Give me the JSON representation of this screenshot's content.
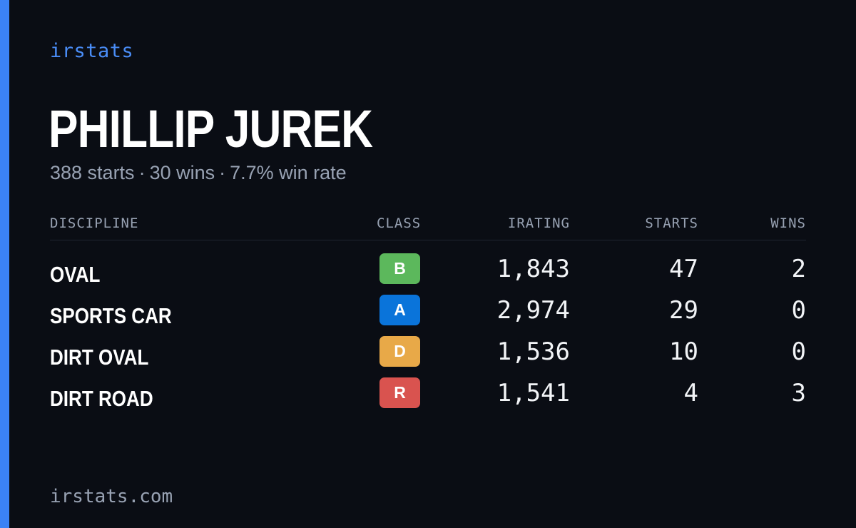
{
  "brand": "irstats",
  "driver": {
    "name": "PHILLIP JUREK",
    "starts_text": "388 starts",
    "wins_text": "30 wins",
    "win_rate_text": "7.7% win rate",
    "separator": "·"
  },
  "table": {
    "headers": {
      "discipline": "DISCIPLINE",
      "class": "CLASS",
      "irating": "IRATING",
      "starts": "STARTS",
      "wins": "WINS"
    },
    "rows": [
      {
        "discipline": "OVAL",
        "class": "B",
        "class_color": "#5cb85c",
        "irating": "1,843",
        "starts": "47",
        "wins": "2"
      },
      {
        "discipline": "SPORTS CAR",
        "class": "A",
        "class_color": "#0a74da",
        "irating": "2,974",
        "starts": "29",
        "wins": "0"
      },
      {
        "discipline": "DIRT OVAL",
        "class": "D",
        "class_color": "#e8a948",
        "irating": "1,536",
        "starts": "10",
        "wins": "0"
      },
      {
        "discipline": "DIRT ROAD",
        "class": "R",
        "class_color": "#d9534f",
        "irating": "1,541",
        "starts": "4",
        "wins": "3"
      }
    ]
  },
  "footer": "irstats.com",
  "colors": {
    "accent": "#3b82f6",
    "background": "#0a0d14"
  }
}
